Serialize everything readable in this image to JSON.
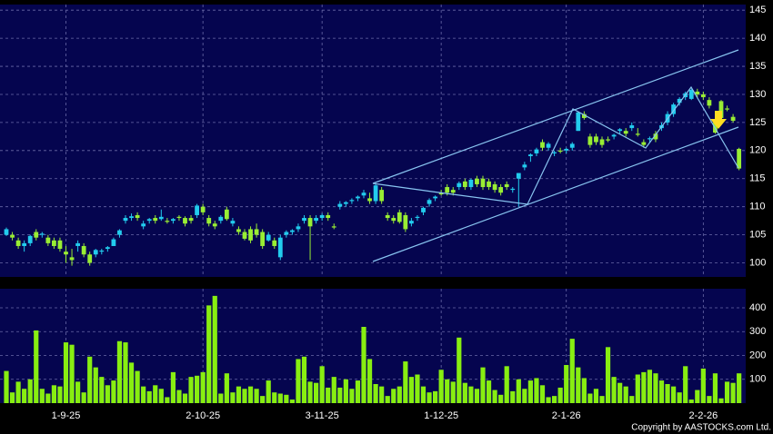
{
  "chart_data": [
    {
      "type": "candlestick",
      "up_color": "#22ccee",
      "down_color": "#99ee33",
      "ylim": [
        97.5,
        146
      ],
      "yticks": [
        100,
        105,
        110,
        115,
        120,
        125,
        130,
        135,
        140,
        145
      ],
      "grid": true,
      "categories": [
        null,
        null,
        null,
        null,
        null,
        null,
        null,
        null,
        null,
        null,
        "1-9-25",
        null,
        null,
        null,
        null,
        null,
        null,
        null,
        null,
        null,
        null,
        null,
        null,
        null,
        null,
        null,
        null,
        null,
        null,
        null,
        null,
        null,
        null,
        "2-10-25",
        null,
        null,
        null,
        null,
        null,
        null,
        null,
        null,
        null,
        null,
        null,
        null,
        null,
        null,
        null,
        null,
        null,
        null,
        null,
        "3-11-25",
        null,
        null,
        null,
        null,
        null,
        null,
        null,
        null,
        null,
        null,
        null,
        null,
        null,
        null,
        null,
        null,
        null,
        null,
        null,
        "1-12-25",
        null,
        null,
        null,
        null,
        null,
        null,
        null,
        null,
        null,
        null,
        null,
        null,
        null,
        null,
        null,
        null,
        null,
        null,
        null,
        null,
        "2-1-26",
        null,
        null,
        null,
        null,
        null,
        null,
        null,
        null,
        null,
        null,
        null,
        null,
        null,
        null,
        null,
        null,
        null,
        null,
        null,
        null,
        null,
        null,
        "2-2-26",
        null,
        null,
        null,
        null,
        null,
        null
      ],
      "open": [
        105,
        105,
        104,
        103,
        103.5,
        105.5,
        105,
        104.5,
        104,
        104,
        102,
        101,
        103,
        103,
        101.5,
        101.5,
        102,
        102.5,
        103,
        105,
        107.5,
        108,
        108.5,
        106.5,
        107.5,
        108,
        107.8,
        107.5,
        107.5,
        108.2,
        108,
        108,
        108.5,
        110,
        108,
        107,
        107.5,
        109.5,
        107,
        106,
        105.5,
        106,
        106,
        105.5,
        104,
        104,
        101,
        105,
        105.5,
        106,
        107.5,
        108,
        107.5,
        108,
        108.5,
        106.5,
        110,
        110.5,
        111,
        111.5,
        112,
        111.5,
        111,
        113,
        108.5,
        108,
        109,
        108.5,
        107,
        108,
        109,
        110.5,
        111.5,
        112.5,
        113.5,
        113,
        113.5,
        114.5,
        113.5,
        115,
        115,
        114.5,
        114,
        113.5,
        114,
        113,
        115,
        117,
        119,
        119.5,
        121.5,
        120.5,
        119.5,
        120,
        120,
        120.5,
        123.5,
        126.5,
        122.5,
        122.5,
        122,
        122,
        122.5,
        123.5,
        123.5,
        124,
        123,
        121.5,
        122,
        123,
        124,
        125,
        126.5,
        128.5,
        129.5,
        129.2,
        130.5,
        130,
        129,
        125,
        128.8,
        127.5,
        126,
        120.3
      ],
      "high": [
        106.3,
        105.5,
        104.5,
        104,
        105,
        106,
        105.5,
        105,
        104.5,
        104.5,
        103,
        102.5,
        104,
        103.5,
        102,
        102.5,
        102.5,
        103,
        104.5,
        106,
        108.5,
        108.8,
        109,
        107.5,
        108,
        108.5,
        109.5,
        108,
        108,
        108.5,
        108.3,
        108.5,
        110.5,
        110.5,
        108.5,
        107.5,
        108.5,
        110,
        108,
        106.5,
        106,
        106.5,
        107,
        106,
        105.5,
        104.5,
        105,
        105.8,
        106,
        107,
        108.5,
        108.5,
        108.5,
        108.8,
        109,
        107,
        111,
        111,
        111.5,
        112,
        113,
        112.5,
        114,
        113.5,
        109,
        108.5,
        109.5,
        109,
        108,
        108.5,
        110,
        111.5,
        112,
        113,
        114,
        113.5,
        114.5,
        115,
        115,
        115.5,
        115.5,
        115,
        114.5,
        114,
        114.5,
        113.5,
        116,
        118,
        119.5,
        120.5,
        122,
        121.5,
        120,
        120.5,
        120.5,
        121.5,
        127,
        127,
        123,
        123,
        122.5,
        122.5,
        123,
        124,
        124,
        125,
        124,
        122,
        122.5,
        123.5,
        125,
        127,
        128.5,
        129.5,
        130.5,
        131,
        131,
        130.5,
        129.5,
        125.5,
        129,
        128,
        126.5,
        120.5
      ],
      "low": [
        104.8,
        104,
        102.5,
        102,
        103,
        104,
        104.5,
        103,
        102.5,
        102,
        100,
        99.5,
        102,
        101,
        99.5,
        101,
        101.5,
        102,
        103,
        104.5,
        107,
        107.5,
        107.5,
        106,
        107,
        107,
        107.5,
        107,
        107,
        107.5,
        106.5,
        107,
        108,
        108.5,
        106.5,
        106,
        107,
        107.5,
        106.5,
        105,
        104,
        103.5,
        104.5,
        102.5,
        103.8,
        102.5,
        100.5,
        104.5,
        105,
        105.5,
        107,
        100.5,
        107,
        107.5,
        107.5,
        106,
        109.5,
        110,
        110.5,
        111,
        111.5,
        110.5,
        110.5,
        110.5,
        107.5,
        107,
        107,
        105.5,
        106.5,
        107.5,
        108.5,
        110,
        111,
        112,
        112,
        112,
        113,
        113,
        113,
        113.5,
        113,
        113,
        112.5,
        112,
        113,
        112.5,
        110,
        116.5,
        118,
        119,
        120,
        120,
        119,
        119.5,
        119.5,
        120,
        123.5,
        125.5,
        120.5,
        121,
        120.5,
        121.5,
        122,
        123,
        122.5,
        123.5,
        122.5,
        120.5,
        121.5,
        121.5,
        123.5,
        124.5,
        126,
        128,
        129,
        129,
        129.5,
        129,
        127.5,
        123,
        125.5,
        127,
        125,
        116.5
      ],
      "close": [
        106,
        104.5,
        103,
        103.5,
        104.8,
        104.5,
        105.2,
        103.5,
        103,
        102.5,
        101.5,
        100.5,
        103.5,
        101.5,
        100,
        102.3,
        102.2,
        102.8,
        104.2,
        105.8,
        108,
        108.3,
        108,
        107,
        107.8,
        107.5,
        108.2,
        107.3,
        107.8,
        108,
        107,
        107.5,
        110.2,
        109,
        107,
        106.5,
        108.2,
        107.8,
        107.5,
        105.5,
        104.3,
        104,
        105,
        103,
        105,
        103,
        104.5,
        105.5,
        105.8,
        106.5,
        108,
        106.5,
        108,
        108.5,
        108,
        106.3,
        110.5,
        110.8,
        111.2,
        111.8,
        112.5,
        111,
        113.8,
        111,
        108,
        107.5,
        107.3,
        106,
        107.5,
        108.2,
        109.8,
        111.2,
        111.8,
        112.2,
        112.5,
        112.5,
        114.2,
        113.5,
        114.8,
        114,
        113.5,
        113.5,
        113,
        112.5,
        113.5,
        113.2,
        116,
        117.5,
        119.3,
        120.2,
        120.5,
        121.2,
        119.7,
        119.8,
        120.3,
        121.2,
        126.8,
        125.8,
        121,
        121.5,
        121,
        121.8,
        122.8,
        123.8,
        123,
        124.5,
        122.8,
        121,
        122.2,
        122,
        124.5,
        126.5,
        128.2,
        129.2,
        130.2,
        130.8,
        130,
        129.5,
        128,
        123.2,
        125.8,
        127.3,
        125.3,
        116.8
      ]
    },
    {
      "type": "bar",
      "color": "#88ee11",
      "ylim": [
        0,
        480
      ],
      "yticks": [
        100,
        200,
        300,
        400
      ],
      "grid": true,
      "values": [
        135,
        45,
        90,
        60,
        100,
        305,
        60,
        40,
        75,
        70,
        255,
        245,
        90,
        45,
        195,
        150,
        110,
        75,
        95,
        260,
        255,
        170,
        135,
        70,
        50,
        75,
        60,
        25,
        130,
        55,
        40,
        110,
        115,
        130,
        410,
        450,
        40,
        125,
        45,
        70,
        60,
        70,
        60,
        30,
        95,
        45,
        40,
        35,
        15,
        185,
        195,
        90,
        85,
        155,
        65,
        110,
        65,
        100,
        60,
        95,
        320,
        185,
        80,
        70,
        30,
        60,
        70,
        175,
        110,
        120,
        70,
        45,
        50,
        140,
        100,
        90,
        275,
        85,
        70,
        60,
        150,
        95,
        55,
        35,
        155,
        50,
        100,
        60,
        95,
        105,
        75,
        25,
        30,
        65,
        160,
        270,
        150,
        105,
        40,
        60,
        30,
        235,
        110,
        85,
        70,
        30,
        120,
        130,
        140,
        125,
        95,
        80,
        70,
        45,
        155,
        15,
        55,
        145,
        30,
        125,
        20,
        90,
        85,
        125
      ]
    }
  ],
  "copyright": "Copyright by AASTOCKS.com Ltd."
}
